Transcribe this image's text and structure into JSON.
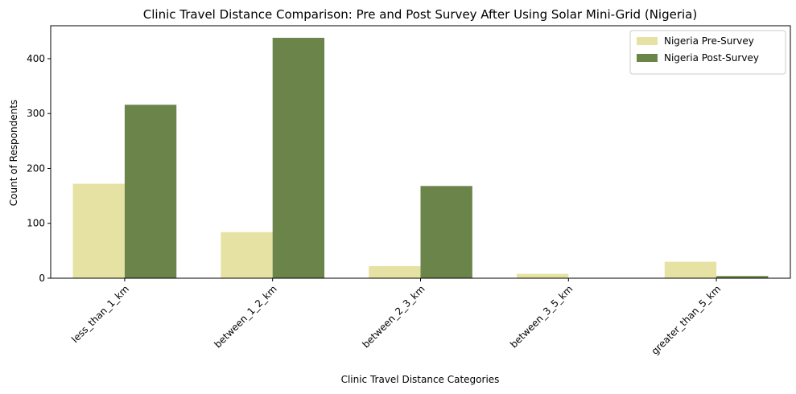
{
  "chart_data": {
    "type": "bar",
    "title": "Clinic Travel Distance Comparison: Pre and Post Survey After Using Solar Mini-Grid (Nigeria)",
    "xlabel": "Clinic Travel Distance Categories",
    "ylabel": "Count of Respondents",
    "categories": [
      "less_than_1_km",
      "between_1_2_km",
      "between_2_3_km",
      "between_3_5_km",
      "greater_than_5_km"
    ],
    "series": [
      {
        "name": "Nigeria Pre-Survey",
        "color": "#e6e2a3",
        "values": [
          172,
          84,
          22,
          8,
          30
        ]
      },
      {
        "name": "Nigeria Post-Survey",
        "color": "#6b844a",
        "values": [
          316,
          438,
          168,
          0,
          4
        ]
      }
    ],
    "ylim": [
      0,
      460
    ],
    "yticks": [
      0,
      100,
      200,
      300,
      400
    ],
    "legend_position": "top-right",
    "grid": false
  }
}
